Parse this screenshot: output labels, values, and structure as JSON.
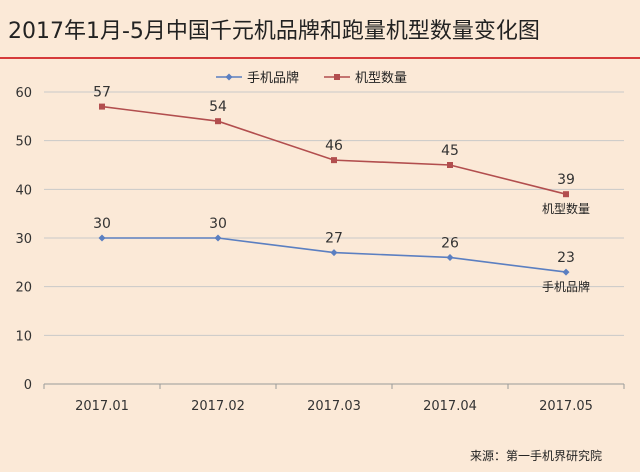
{
  "chart_data": {
    "type": "line",
    "title": "2017年1月-5月中国千元机品牌和跑量机型数量变化图",
    "categories": [
      "2017.01",
      "2017.02",
      "2017.03",
      "2017.04",
      "2017.05"
    ],
    "series": [
      {
        "name": "手机品牌",
        "values": [
          30,
          30,
          27,
          26,
          23
        ],
        "color": "#5b7fc1",
        "end_label": "手机品牌"
      },
      {
        "name": "机型数量",
        "values": [
          57,
          54,
          46,
          45,
          39
        ],
        "color": "#b24e4e",
        "end_label": "机型数量"
      }
    ],
    "ylim": [
      0,
      60
    ],
    "yticks": [
      0,
      10,
      20,
      30,
      40,
      50,
      60
    ],
    "grid": true,
    "legend_position": "top",
    "source": "来源：第一手机界研究院",
    "colors": {
      "background": "#fbe9d7",
      "title_underline": "#d63a3a",
      "grid": "#c9c9c9",
      "axis": "#9a9a9a"
    }
  }
}
